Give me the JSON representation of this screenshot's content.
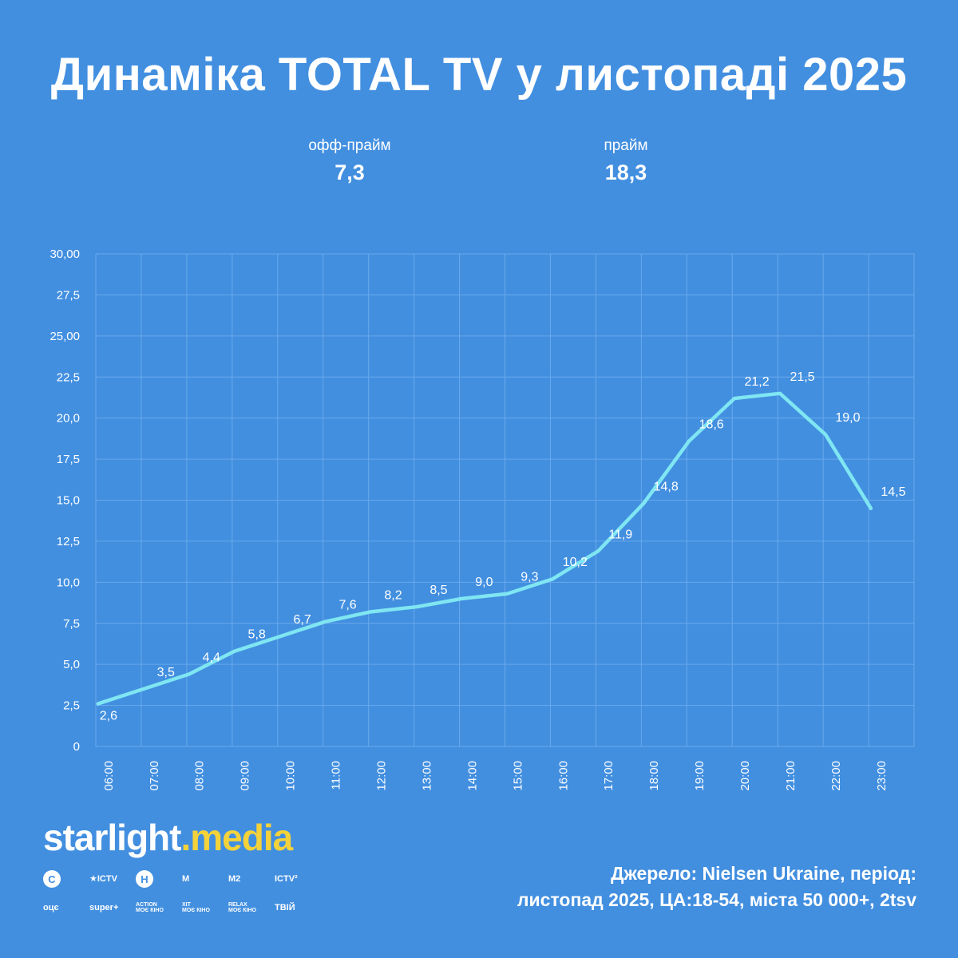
{
  "title": "Динаміка TOTAL TV у листопаді 2025",
  "kpis": {
    "offprime": {
      "label": "офф-прайм",
      "value": "7,3"
    },
    "prime": {
      "label": "прайм",
      "value": "18,3"
    }
  },
  "chart_data": {
    "type": "line",
    "title": "Динаміка TOTAL TV у листопаді 2025",
    "categories": [
      "06:00",
      "07:00",
      "08:00",
      "09:00",
      "10:00",
      "11:00",
      "12:00",
      "13:00",
      "14:00",
      "15:00",
      "16:00",
      "17:00",
      "18:00",
      "19:00",
      "20:00",
      "21:00",
      "22:00",
      "23:00"
    ],
    "values": [
      2.6,
      3.5,
      4.4,
      5.8,
      6.7,
      7.6,
      8.2,
      8.5,
      9.0,
      9.3,
      10.2,
      11.9,
      14.8,
      18.6,
      21.2,
      21.5,
      19.0,
      14.5
    ],
    "point_labels": [
      "2,6",
      "3,5",
      "4,4",
      "5,8",
      "6,7",
      "7,6",
      "8,2",
      "8,5",
      "9,0",
      "9,3",
      "10,2",
      "11,9",
      "14,8",
      "18,6",
      "21,2",
      "21,5",
      "19,0",
      "14,5"
    ],
    "y_ticks": [
      0,
      2.5,
      5,
      7.5,
      10,
      12.5,
      15,
      17.5,
      20,
      22.5,
      25,
      27.5,
      30
    ],
    "y_tick_labels": [
      "0",
      "2,5",
      "5,0",
      "7,5",
      "10,0",
      "12,5",
      "15,0",
      "17,5",
      "20,0",
      "22,5",
      "25,00",
      "27,5",
      "30,00"
    ],
    "ylim": [
      0,
      30
    ],
    "xlabel": "",
    "ylabel": "",
    "grid": true,
    "line_color": "#7fe6f2",
    "grid_color": "#6aa9ea"
  },
  "logo": {
    "main": "starlight",
    "dot": ".",
    "accent": "media"
  },
  "channels": [
    "С",
    "★ICTV",
    "Н",
    "М",
    "М2",
    "ICTV²",
    "оцє",
    "super+",
    "ACTION\nМОЄ КІНО",
    "ХІТ\nМОЄ КІНО",
    "RELAX\nМОЄ КІНО",
    "ТВІЙ"
  ],
  "source_lines": [
    "Джерело: Nielsen Ukraine, період:",
    "листопад 2025, ЦА:18-54, міста 50 000+, 2tsv"
  ],
  "colors": {
    "background": "#428fe0",
    "accent": "#f4d23a"
  }
}
